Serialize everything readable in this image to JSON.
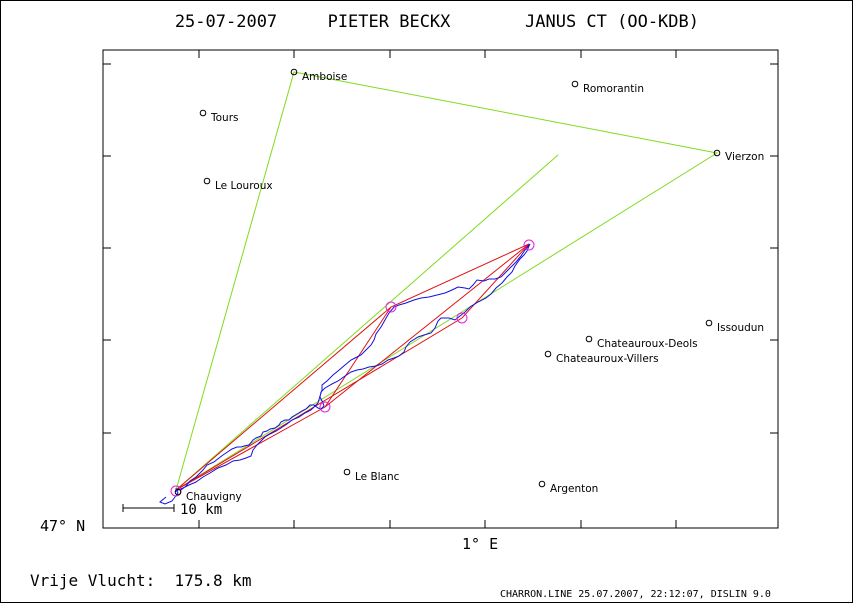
{
  "header": {
    "date": "25-07-2007",
    "pilot": "PIETER BECKX",
    "glider": "JANUS CT (OO-KDB)"
  },
  "axes": {
    "lat_label": "47° N",
    "lon_label": "1° E"
  },
  "scale_label": "10 km",
  "footer": {
    "free_flight": "Vrije Vlucht:  175.8 km",
    "credit": "CHARRON.LINE 25.07.2007, 22:12:07, DISLIN 9.0"
  },
  "towns": [
    {
      "name": "Amboise"
    },
    {
      "name": "Romorantin"
    },
    {
      "name": "Tours"
    },
    {
      "name": "Vierzon"
    },
    {
      "name": "Le Louroux"
    },
    {
      "name": "Issoudun"
    },
    {
      "name": "Chateauroux-Deols"
    },
    {
      "name": "Chateauroux-Villers"
    },
    {
      "name": "Le Blanc"
    },
    {
      "name": "Argenton"
    },
    {
      "name": "Chauvigny"
    }
  ],
  "colors": {
    "task_line": "#7fdc1e",
    "optimized_line": "#e01010",
    "flight_track": "#1010e0",
    "turnpoint": "#e020e0"
  }
}
